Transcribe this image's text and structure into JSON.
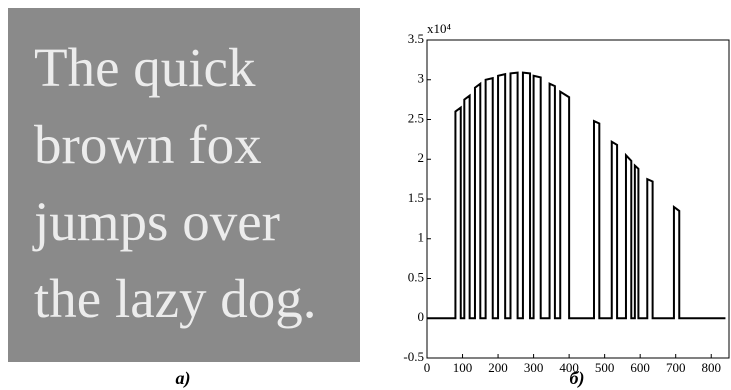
{
  "image": {
    "lines": [
      "The quick",
      "brown fox",
      "jumps over",
      "the lazy dog."
    ]
  },
  "captions": [
    "а)",
    "б)"
  ],
  "chart_data": {
    "type": "line",
    "annotation": "x10⁴",
    "x": [
      0,
      80,
      80,
      95,
      95,
      105,
      105,
      120,
      120,
      135,
      135,
      150,
      150,
      165,
      165,
      185,
      185,
      200,
      200,
      220,
      220,
      235,
      235,
      255,
      255,
      270,
      270,
      290,
      290,
      300,
      300,
      320,
      320,
      345,
      345,
      360,
      360,
      375,
      375,
      400,
      400,
      470,
      470,
      485,
      485,
      520,
      520,
      535,
      535,
      560,
      560,
      575,
      575,
      585,
      585,
      595,
      595,
      620,
      620,
      635,
      635,
      695,
      695,
      710,
      710,
      840
    ],
    "series": [
      {
        "color": "#000000",
        "values": [
          0,
          0,
          2.6,
          2.65,
          0,
          0,
          2.75,
          2.8,
          0,
          0,
          2.9,
          2.95,
          0,
          0,
          3.0,
          3.02,
          0,
          0,
          3.05,
          3.07,
          0,
          0,
          3.08,
          3.09,
          0,
          0,
          3.09,
          3.08,
          0,
          0,
          3.05,
          3.03,
          0,
          0,
          2.95,
          2.92,
          0,
          0,
          2.85,
          2.78,
          0,
          0,
          2.48,
          2.45,
          0,
          0,
          2.22,
          2.18,
          0,
          0,
          2.05,
          1.98,
          0,
          0,
          1.92,
          1.88,
          0,
          0,
          1.75,
          1.72,
          0,
          0,
          1.4,
          1.35,
          0,
          0
        ]
      }
    ],
    "xlim": [
      0,
      850
    ],
    "ylim": [
      -0.5,
      3.5
    ],
    "xticks": [
      0,
      100,
      200,
      300,
      400,
      500,
      600,
      700,
      800
    ],
    "yticks": [
      -0.5,
      0,
      0.5,
      1,
      1.5,
      2,
      2.5,
      3,
      3.5
    ]
  }
}
